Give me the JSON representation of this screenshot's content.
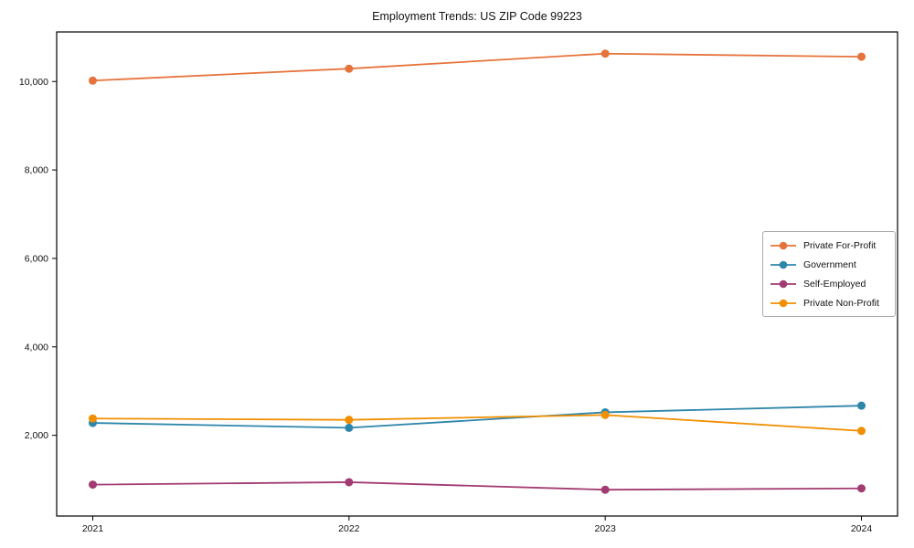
{
  "title": "Employment Trends: US ZIP Code 99223",
  "chart_data": {
    "type": "line",
    "title": "Employment Trends: US ZIP Code 99223",
    "xlabel": "",
    "ylabel": "",
    "x": [
      2021,
      2022,
      2023,
      2024
    ],
    "xtick_labels": [
      "2021",
      "2022",
      "2023",
      "2024"
    ],
    "series": [
      {
        "name": "Private For-Profit",
        "color": "#e6733c",
        "values": [
          10020,
          10290,
          10630,
          10560
        ]
      },
      {
        "name": "Government",
        "color": "#2e86ab",
        "values": [
          2280,
          2170,
          2520,
          2670
        ]
      },
      {
        "name": "Self-Employed",
        "color": "#a23b72",
        "values": [
          885,
          940,
          770,
          800
        ]
      },
      {
        "name": "Private Non-Profit",
        "color": "#f18f01",
        "values": [
          2380,
          2350,
          2460,
          2100
        ]
      }
    ],
    "yticks": [
      {
        "value": 2000,
        "label": "2,000"
      },
      {
        "value": 4000,
        "label": "4,000"
      },
      {
        "value": 6000,
        "label": "6,000"
      },
      {
        "value": 8000,
        "label": "8,000"
      },
      {
        "value": 10000,
        "label": "10,000"
      }
    ],
    "ylim": [
      175,
      11120
    ],
    "grid": false,
    "legend_position": "center right",
    "axis_color": "#000000"
  }
}
